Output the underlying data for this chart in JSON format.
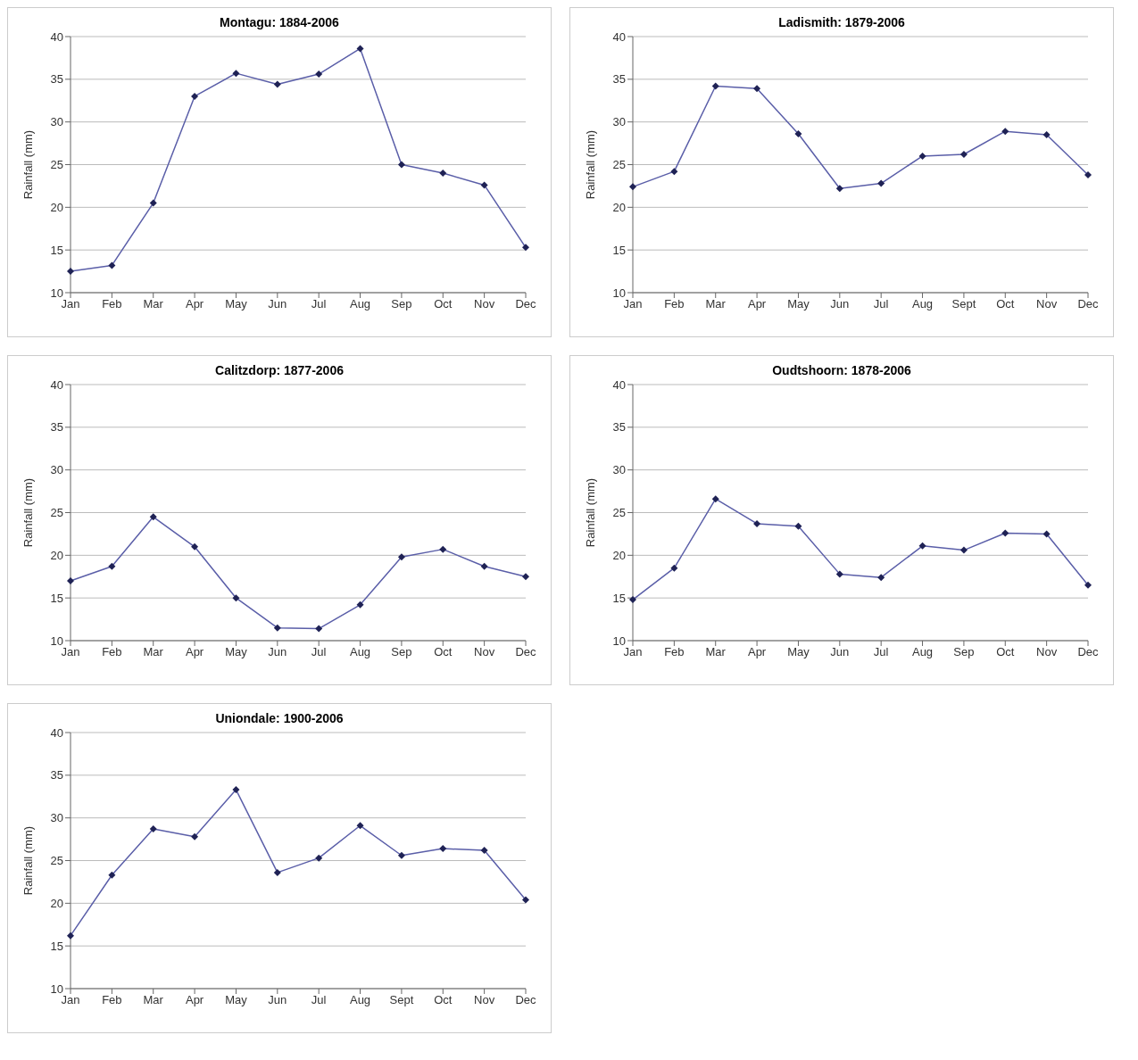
{
  "chart_data": [
    {
      "type": "line",
      "title": "Montagu: 1884-2006",
      "ylabel": "Rainfall (mm)",
      "categories": [
        "Jan",
        "Feb",
        "Mar",
        "Apr",
        "May",
        "Jun",
        "Jul",
        "Aug",
        "Sep",
        "Oct",
        "Nov",
        "Dec"
      ],
      "values": [
        12.5,
        13.2,
        20.5,
        33,
        35.7,
        34.4,
        35.6,
        38.6,
        25,
        24,
        22.6,
        15.3
      ],
      "color": "#5a5ea8",
      "ylim": [
        10,
        40
      ],
      "yticks": [
        10,
        15,
        20,
        25,
        30,
        35,
        40
      ],
      "grid": "y",
      "marker": "diamond",
      "line_style": "solid",
      "legend": false
    },
    {
      "type": "line",
      "title": "Ladismith: 1879-2006",
      "ylabel": "Rainfall (mm)",
      "categories": [
        "Jan",
        "Feb",
        "Mar",
        "Apr",
        "May",
        "Jun",
        "Jul",
        "Aug",
        "Sept",
        "Oct",
        "Nov",
        "Dec"
      ],
      "values": [
        22.4,
        24.2,
        34.2,
        33.9,
        28.6,
        22.2,
        22.8,
        26,
        26.2,
        28.9,
        28.5,
        23.8
      ],
      "color": "#5a5ea8",
      "ylim": [
        10,
        40
      ],
      "yticks": [
        10,
        15,
        20,
        25,
        30,
        35,
        40
      ],
      "grid": "y",
      "marker": "diamond",
      "line_style": "solid",
      "legend": false
    },
    {
      "type": "line",
      "title": "Calitzdorp: 1877-2006",
      "ylabel": "Rainfall (mm)",
      "categories": [
        "Jan",
        "Feb",
        "Mar",
        "Apr",
        "May",
        "Jun",
        "Jul",
        "Aug",
        "Sep",
        "Oct",
        "Nov",
        "Dec"
      ],
      "values": [
        17,
        18.7,
        24.5,
        21,
        15,
        11.5,
        11.4,
        14.2,
        19.8,
        20.7,
        18.7,
        17.5
      ],
      "color": "#5a5ea8",
      "ylim": [
        10,
        40
      ],
      "yticks": [
        10,
        15,
        20,
        25,
        30,
        35,
        40
      ],
      "grid": "y",
      "marker": "diamond",
      "line_style": "solid",
      "legend": false
    },
    {
      "type": "line",
      "title": "Oudtshoorn: 1878-2006",
      "ylabel": "Rainfall (mm)",
      "categories": [
        "Jan",
        "Feb",
        "Mar",
        "Apr",
        "May",
        "Jun",
        "Jul",
        "Aug",
        "Sep",
        "Oct",
        "Nov",
        "Dec"
      ],
      "values": [
        14.8,
        18.5,
        26.6,
        23.7,
        23.4,
        17.8,
        17.4,
        21.1,
        20.6,
        22.6,
        22.5,
        16.5
      ],
      "color": "#5a5ea8",
      "ylim": [
        10,
        40
      ],
      "yticks": [
        10,
        15,
        20,
        25,
        30,
        35,
        40
      ],
      "grid": "y",
      "marker": "diamond",
      "line_style": "solid",
      "legend": false
    },
    {
      "type": "line",
      "title": "Uniondale: 1900-2006",
      "ylabel": "Rainfall (mm)",
      "categories": [
        "Jan",
        "Feb",
        "Mar",
        "Apr",
        "May",
        "Jun",
        "Jul",
        "Aug",
        "Sept",
        "Oct",
        "Nov",
        "Dec"
      ],
      "values": [
        16.2,
        23.3,
        28.7,
        27.8,
        33.3,
        23.6,
        25.3,
        29.1,
        25.6,
        26.4,
        26.2,
        20.4
      ],
      "color": "#5a5ea8",
      "ylim": [
        10,
        40
      ],
      "yticks": [
        10,
        15,
        20,
        25,
        30,
        35,
        40
      ],
      "grid": "y",
      "marker": "diamond",
      "line_style": "solid",
      "legend": false
    }
  ]
}
